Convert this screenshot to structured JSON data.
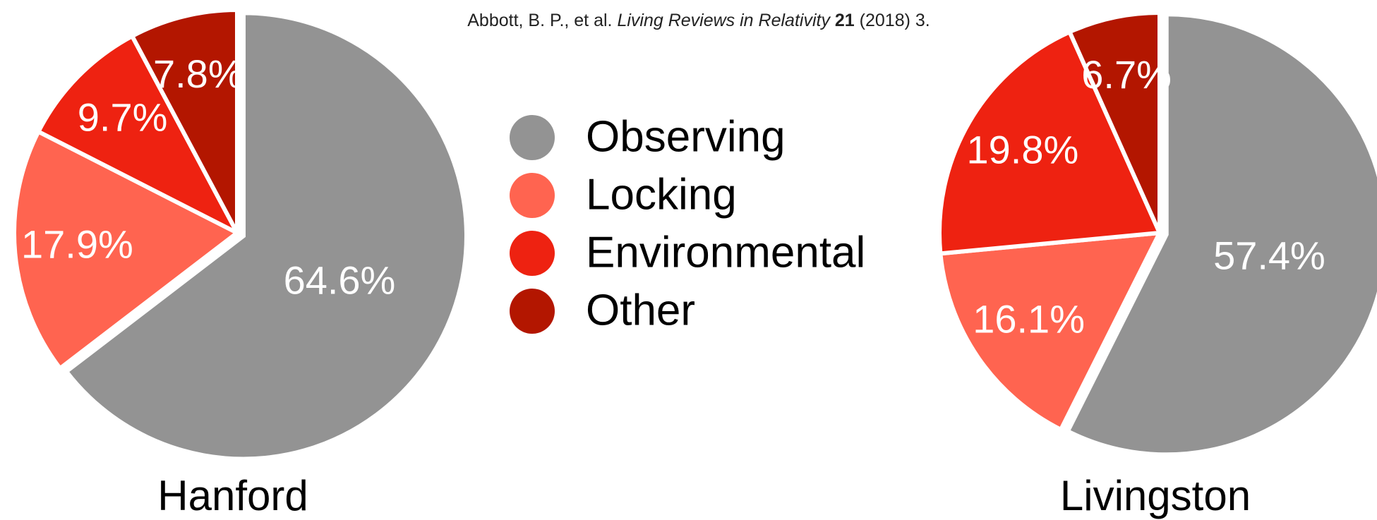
{
  "citation": {
    "authors": "Abbott, B. P., et al.",
    "journal": "Living Reviews in Relativity",
    "volume": "21",
    "rest": "(2018) 3."
  },
  "chart_data": [
    {
      "type": "pie",
      "title": "Hanford",
      "categories": [
        "Observing",
        "Locking",
        "Environmental",
        "Other"
      ],
      "values": [
        64.6,
        17.9,
        9.7,
        7.8
      ],
      "value_labels": [
        "64.6%",
        "17.9%",
        "9.7%",
        "7.8%"
      ],
      "colors": [
        "#939393",
        "#ff6450",
        "#ee2211",
        "#b31600"
      ]
    },
    {
      "type": "pie",
      "title": "Livingston",
      "categories": [
        "Observing",
        "Locking",
        "Environmental",
        "Other"
      ],
      "values": [
        57.4,
        16.1,
        19.8,
        6.7
      ],
      "value_labels": [
        "57.4%",
        "16.1%",
        "19.8%",
        "6.7%"
      ],
      "colors": [
        "#939393",
        "#ff6450",
        "#ee2211",
        "#b31600"
      ]
    }
  ]
}
